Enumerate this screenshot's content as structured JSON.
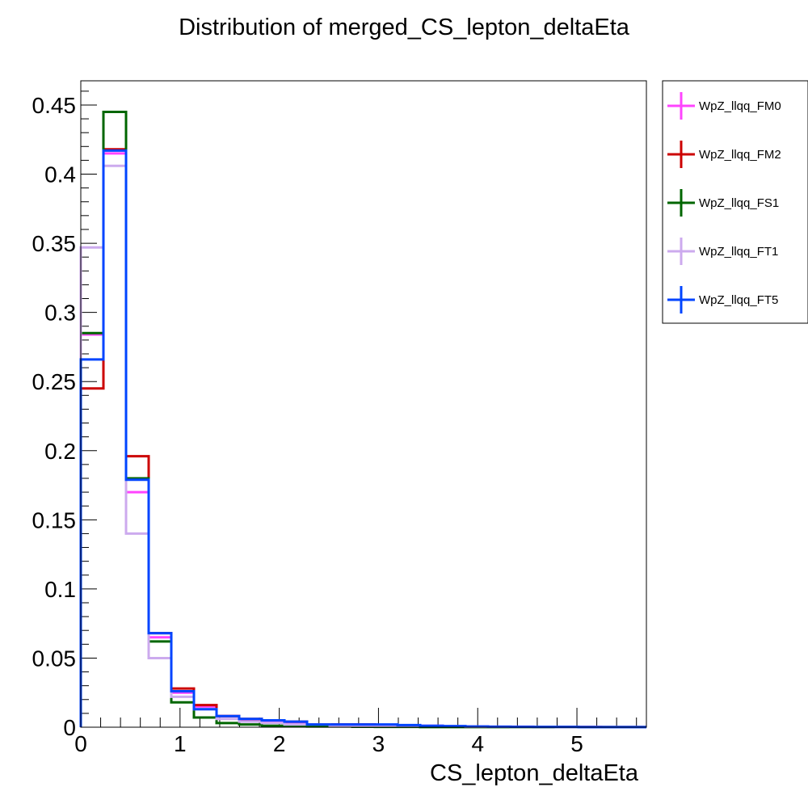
{
  "chart_data": {
    "type": "histogram",
    "title": "Distribution of merged_CS_lepton_deltaEta",
    "xlabel": "CS_lepton_deltaEta",
    "ylabel": "",
    "xlim": [
      0,
      5.7
    ],
    "ylim": [
      0,
      0.4675
    ],
    "x_ticks": [
      "0",
      "1",
      "2",
      "3",
      "4",
      "5"
    ],
    "y_ticks": [
      "0",
      "0.05",
      "0.1",
      "0.15",
      "0.2",
      "0.25",
      "0.3",
      "0.35",
      "0.4",
      "0.45"
    ],
    "grid": false,
    "legend_position": "outside-right",
    "bin_edges": [
      0,
      0.228,
      0.456,
      0.684,
      0.912,
      1.14,
      1.368,
      1.596,
      1.824,
      2.052,
      2.28,
      2.508,
      2.736,
      2.964,
      3.192,
      3.42,
      3.648,
      3.876,
      4.104,
      4.332,
      4.56,
      4.788,
      5.016,
      5.244,
      5.472,
      5.7
    ],
    "series": [
      {
        "name": "WpZ_llqq_FM0",
        "color": "#ff44ff",
        "values": [
          0.284,
          0.415,
          0.17,
          0.065,
          0.025,
          0.015,
          0.008,
          0.005,
          0.004,
          0.003,
          0.002,
          0.002,
          0.002,
          0.0015,
          0.001,
          0.001,
          0.0007,
          0.0005,
          0.0004,
          0.0004,
          0.0003,
          0.0002,
          0.0002,
          0.0001,
          0.0001
        ]
      },
      {
        "name": "WpZ_llqq_FM2",
        "color": "#cc0000",
        "values": [
          0.245,
          0.418,
          0.196,
          0.068,
          0.028,
          0.016,
          0.008,
          0.006,
          0.005,
          0.004,
          0.002,
          0.002,
          0.002,
          0.001,
          0.001,
          0.0008,
          0.0006,
          0.0004,
          0.0003,
          0.0003,
          0.0002,
          0.0002,
          0.0001,
          0.0001,
          0.0001
        ]
      },
      {
        "name": "WpZ_llqq_FS1",
        "color": "#006600",
        "values": [
          0.285,
          0.445,
          0.18,
          0.062,
          0.018,
          0.007,
          0.003,
          0.002,
          0.001,
          0.001,
          0.0005,
          0.0005,
          0.0003,
          0.0002,
          0.0002,
          0.0001,
          0.0001,
          0.0001,
          0.0001,
          0.0001,
          0.0001,
          0.0001,
          0.0001,
          0.0001,
          0.0001
        ]
      },
      {
        "name": "WpZ_llqq_FT1",
        "color": "#ccaaee",
        "values": [
          0.347,
          0.406,
          0.14,
          0.05,
          0.022,
          0.013,
          0.006,
          0.004,
          0.003,
          0.002,
          0.002,
          0.001,
          0.001,
          0.001,
          0.001,
          0.0008,
          0.0006,
          0.0004,
          0.0003,
          0.0002,
          0.0002,
          0.0001,
          0.0001,
          0.0001,
          0.0001
        ]
      },
      {
        "name": "WpZ_llqq_FT5",
        "color": "#0044ff",
        "values": [
          0.266,
          0.417,
          0.179,
          0.068,
          0.026,
          0.013,
          0.008,
          0.006,
          0.005,
          0.004,
          0.002,
          0.002,
          0.002,
          0.002,
          0.0015,
          0.001,
          0.0008,
          0.0005,
          0.0004,
          0.0003,
          0.0002,
          0.0002,
          0.0001,
          0.0001,
          0.0001
        ]
      }
    ]
  }
}
